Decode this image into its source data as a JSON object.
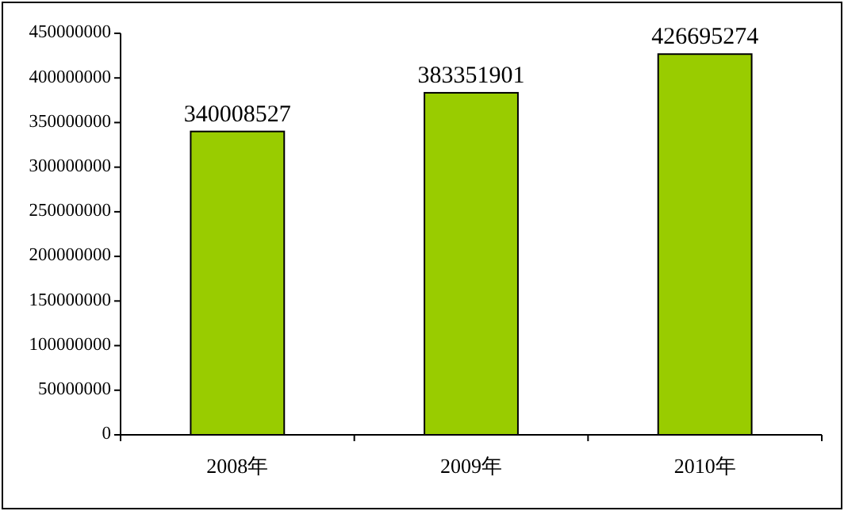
{
  "chart_data": {
    "type": "bar",
    "categories": [
      "2008年",
      "2009年",
      "2010年"
    ],
    "values": [
      340008527,
      383351901,
      426695274
    ],
    "color": "#99cc00",
    "ylim": [
      0,
      450000000
    ],
    "yticks": [
      0,
      50000000,
      100000000,
      150000000,
      200000000,
      250000000,
      300000000,
      350000000,
      400000000,
      450000000
    ],
    "data_labels": true
  }
}
